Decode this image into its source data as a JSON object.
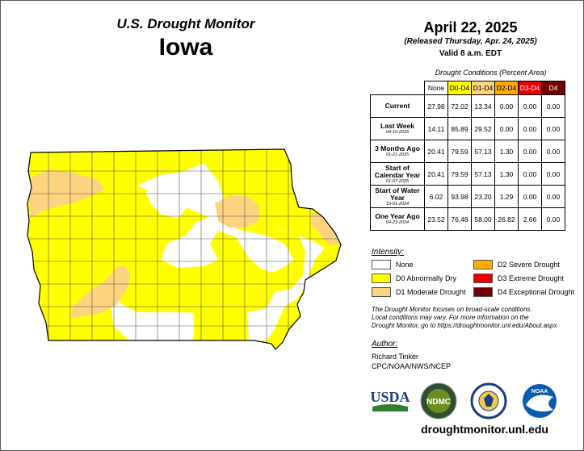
{
  "header": {
    "title": "U.S. Drought Monitor",
    "state": "Iowa",
    "date": "April 22, 2025",
    "released": "(Released Thursday, Apr. 24, 2025)",
    "valid": "Valid 8 a.m. EDT"
  },
  "table": {
    "caption": "Drought Conditions (Percent Area)",
    "columns": [
      {
        "label": "None",
        "color": "#ffffff"
      },
      {
        "label": "D0-D4",
        "color": "#ffff00"
      },
      {
        "label": "D1-D4",
        "color": "#fcd37f"
      },
      {
        "label": "D2-D4",
        "color": "#ffaa00"
      },
      {
        "label": "D3-D4",
        "color": "#e60000"
      },
      {
        "label": "D4",
        "color": "#730000"
      }
    ],
    "rows": [
      {
        "label": "Current",
        "date": "",
        "values": [
          "27.98",
          "72.02",
          "13.34",
          "0.00",
          "0.00",
          "0.00"
        ]
      },
      {
        "label": "Last Week",
        "date": "04-15-2025",
        "values": [
          "14.11",
          "85.89",
          "29.52",
          "0.00",
          "0.00",
          "0.00"
        ]
      },
      {
        "label": "3 Months Ago",
        "date": "01-21-2025",
        "values": [
          "20.41",
          "79.59",
          "57.13",
          "1.30",
          "0.00",
          "0.00"
        ]
      },
      {
        "label": "Start of Calendar Year",
        "date": "01-07-2025",
        "values": [
          "20.41",
          "79.59",
          "57.13",
          "1.30",
          "0.00",
          "0.00"
        ]
      },
      {
        "label": "Start of Water Year",
        "date": "10-01-2024",
        "values": [
          "6.02",
          "93.98",
          "23.20",
          "1.29",
          "0.00",
          "0.00"
        ]
      },
      {
        "label": "One Year Ago",
        "date": "04-23-2024",
        "values": [
          "23.52",
          "76.48",
          "58.00",
          "26.82",
          "2.66",
          "0.00"
        ]
      }
    ]
  },
  "legend": {
    "title": "Intensity:",
    "items": [
      {
        "label": "None",
        "color": "#ffffff"
      },
      {
        "label": "D0 Abnormally Dry",
        "color": "#ffff00"
      },
      {
        "label": "D1 Moderate Drought",
        "color": "#fcd37f"
      },
      {
        "label": "D2 Severe Drought",
        "color": "#ffaa00"
      },
      {
        "label": "D3 Extreme Drought",
        "color": "#e60000"
      },
      {
        "label": "D4 Exceptional Drought",
        "color": "#730000"
      }
    ]
  },
  "note": {
    "line1": "The Drought Monitor focuses on broad-scale conditions.",
    "line2": "Local conditions may vary. For more information on the",
    "line3": "Drought Monitor, go to https://droughtmonitor.unl.edu/About.aspx"
  },
  "author": {
    "title": "Author:",
    "name": "Richard Tinker",
    "org": "CPC/NOAA/NWS/NCEP"
  },
  "logos": {
    "usda": "USDA",
    "ndmc": "NDMC",
    "noaa": "NOAA"
  },
  "url": "droughtmonitor.unl.edu"
}
